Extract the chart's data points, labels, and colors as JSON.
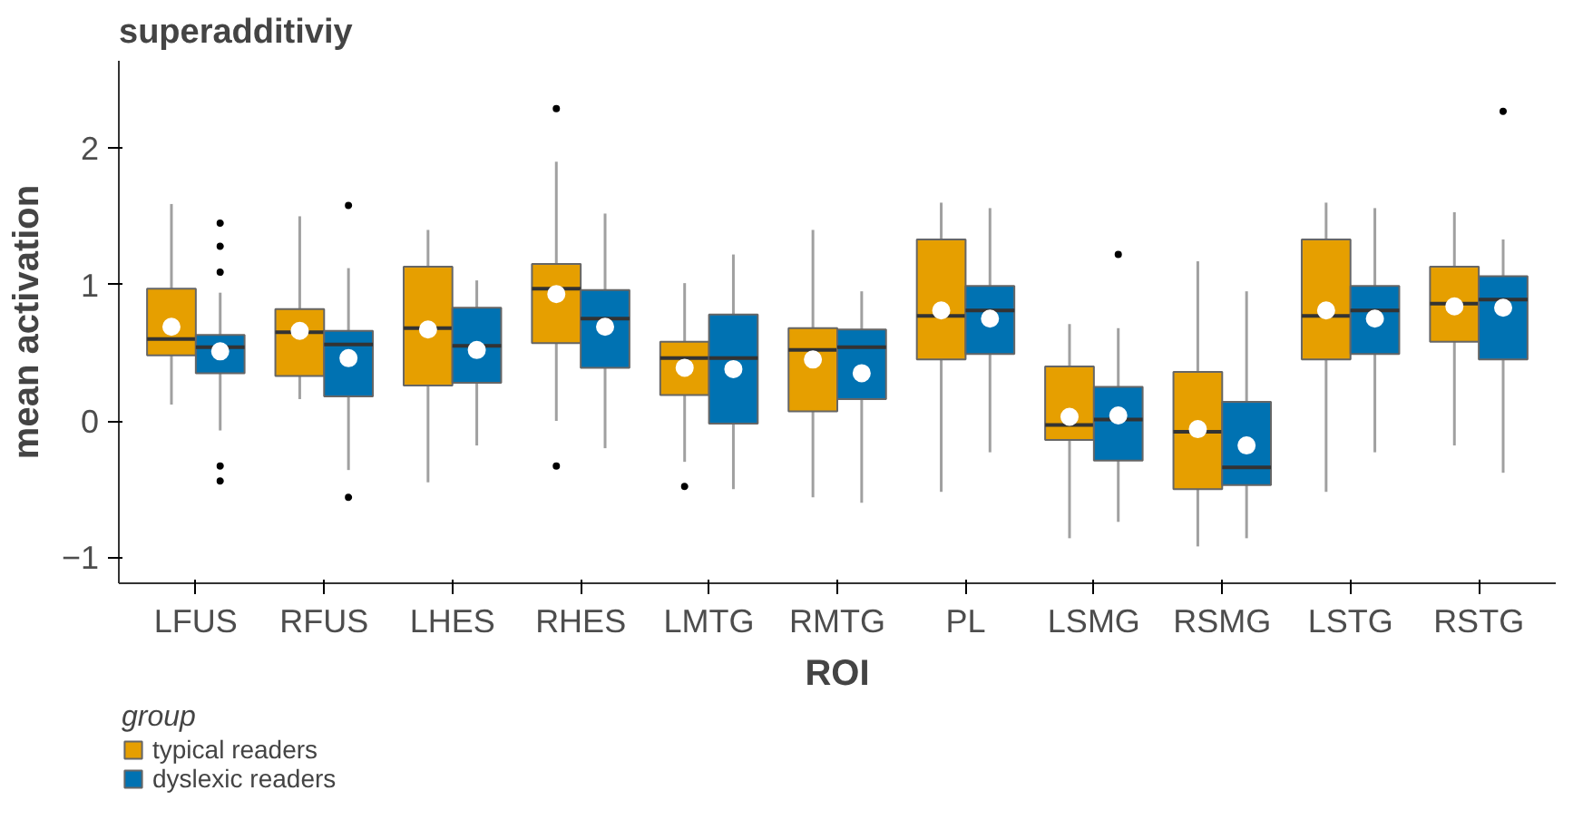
{
  "chart_data": {
    "type": "box",
    "title": "superadditiviy",
    "xlabel": "ROI",
    "ylabel": "mean activation",
    "legend_title": "group",
    "legend": "bottom left",
    "grid": false,
    "categories": [
      "LFUS",
      "RFUS",
      "LHES",
      "RHES",
      "LMTG",
      "RMTG",
      "PL",
      "LSMG",
      "RSMG",
      "LSTG",
      "RSTG"
    ],
    "ylim": [
      -1.19,
      2.64
    ],
    "yticks": [
      -1,
      0,
      1,
      2
    ],
    "series": [
      {
        "name": "typical readers",
        "color": "#e69f00",
        "boxes": [
          {
            "low": 0.12,
            "q1": 0.48,
            "median": 0.6,
            "q3": 0.97,
            "high": 1.59,
            "mean": 0.69
          },
          {
            "low": 0.16,
            "q1": 0.33,
            "median": 0.65,
            "q3": 0.82,
            "high": 1.5,
            "mean": 0.66
          },
          {
            "low": -0.45,
            "q1": 0.26,
            "median": 0.68,
            "q3": 1.13,
            "high": 1.4,
            "mean": 0.67
          },
          {
            "low": 0.0,
            "q1": 0.57,
            "median": 0.97,
            "q3": 1.15,
            "high": 1.9,
            "mean": 0.93,
            "outliers": [
              2.29,
              -0.33
            ]
          },
          {
            "low": -0.3,
            "q1": 0.19,
            "median": 0.46,
            "q3": 0.58,
            "high": 1.01,
            "mean": 0.39,
            "outliers": [
              -0.48
            ]
          },
          {
            "low": -0.56,
            "q1": 0.07,
            "median": 0.52,
            "q3": 0.68,
            "high": 1.4,
            "mean": 0.45
          },
          {
            "low": -0.52,
            "q1": 0.45,
            "median": 0.77,
            "q3": 1.33,
            "high": 1.6,
            "mean": 0.81
          },
          {
            "low": -0.86,
            "q1": -0.14,
            "median": -0.03,
            "q3": 0.4,
            "high": 0.71,
            "mean": 0.03
          },
          {
            "low": -0.92,
            "q1": -0.5,
            "median": -0.08,
            "q3": 0.36,
            "high": 1.17,
            "mean": -0.06
          },
          {
            "low": -0.52,
            "q1": 0.45,
            "median": 0.77,
            "q3": 1.33,
            "high": 1.6,
            "mean": 0.81
          },
          {
            "low": -0.18,
            "q1": 0.58,
            "median": 0.86,
            "q3": 1.13,
            "high": 1.53,
            "mean": 0.84
          }
        ]
      },
      {
        "name": "dyslexic readers",
        "color": "#0072b2",
        "boxes": [
          {
            "low": -0.07,
            "q1": 0.35,
            "median": 0.54,
            "q3": 0.63,
            "high": 0.94,
            "mean": 0.51,
            "outliers": [
              1.45,
              1.28,
              1.09,
              -0.33,
              -0.44
            ]
          },
          {
            "low": -0.36,
            "q1": 0.18,
            "median": 0.56,
            "q3": 0.66,
            "high": 1.12,
            "mean": 0.46,
            "outliers": [
              1.58,
              -0.56
            ]
          },
          {
            "low": -0.18,
            "q1": 0.28,
            "median": 0.55,
            "q3": 0.83,
            "high": 1.03,
            "mean": 0.52
          },
          {
            "low": -0.2,
            "q1": 0.39,
            "median": 0.75,
            "q3": 0.96,
            "high": 1.52,
            "mean": 0.69
          },
          {
            "low": -0.5,
            "q1": -0.02,
            "median": 0.46,
            "q3": 0.78,
            "high": 1.22,
            "mean": 0.38
          },
          {
            "low": -0.6,
            "q1": 0.16,
            "median": 0.54,
            "q3": 0.67,
            "high": 0.95,
            "mean": 0.35
          },
          {
            "low": -0.23,
            "q1": 0.49,
            "median": 0.81,
            "q3": 0.99,
            "high": 1.56,
            "mean": 0.75
          },
          {
            "low": -0.74,
            "q1": -0.29,
            "median": 0.01,
            "q3": 0.25,
            "high": 0.68,
            "mean": 0.04,
            "outliers": [
              1.22
            ]
          },
          {
            "low": -0.86,
            "q1": -0.47,
            "median": -0.34,
            "q3": 0.14,
            "high": 0.95,
            "mean": -0.18
          },
          {
            "low": -0.23,
            "q1": 0.49,
            "median": 0.81,
            "q3": 0.99,
            "high": 1.56,
            "mean": 0.75
          },
          {
            "low": -0.38,
            "q1": 0.45,
            "median": 0.89,
            "q3": 1.06,
            "high": 1.33,
            "mean": 0.83,
            "outliers": [
              2.27
            ]
          }
        ]
      }
    ]
  }
}
